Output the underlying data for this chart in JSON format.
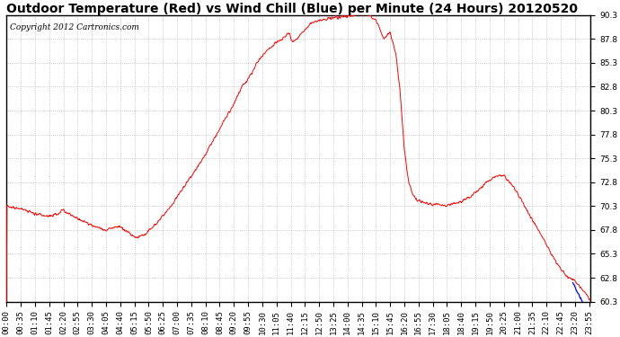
{
  "title": "Outdoor Temperature (Red) vs Wind Chill (Blue) per Minute (24 Hours) 20120520",
  "copyright": "Copyright 2012 Cartronics.com",
  "ylim": [
    60.3,
    90.3
  ],
  "yticks": [
    60.3,
    62.8,
    65.3,
    67.8,
    70.3,
    72.8,
    75.3,
    77.8,
    80.3,
    82.8,
    85.3,
    87.8,
    90.3
  ],
  "bg_color": "white",
  "plot_bg_color": "white",
  "grid_color": "#aaaaaa",
  "line_color_temp": "red",
  "line_color_wind": "blue",
  "title_fontsize": 10,
  "copyright_fontsize": 6.5,
  "tick_fontsize": 6.5,
  "figsize": [
    6.9,
    3.75
  ],
  "dpi": 100
}
